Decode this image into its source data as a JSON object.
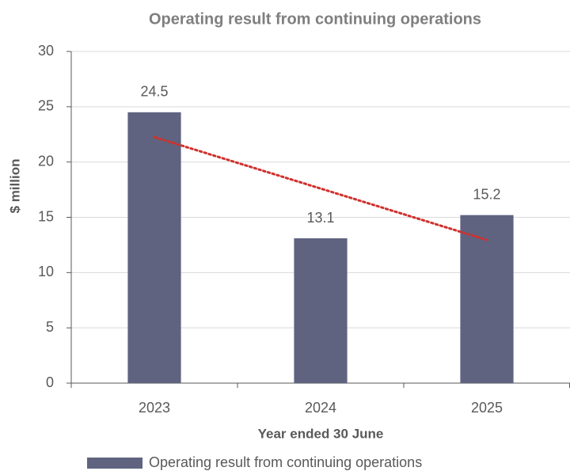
{
  "chart_data": {
    "type": "bar",
    "title": "Operating result from continuing operations",
    "x_label": "Year ended 30 June",
    "y_label": "$ million",
    "categories": [
      "2023",
      "2024",
      "2025"
    ],
    "series": [
      {
        "name": "Operating result from continuing operations",
        "color": "#5f6380",
        "values": [
          24.5,
          13.1,
          15.2
        ]
      }
    ],
    "ylim": [
      0,
      30
    ],
    "yticks": [
      0,
      5,
      10,
      15,
      20,
      25,
      30
    ],
    "grid": true,
    "trendline": {
      "kind": "linear",
      "color": "#d0312d"
    },
    "legend": "bottom"
  }
}
